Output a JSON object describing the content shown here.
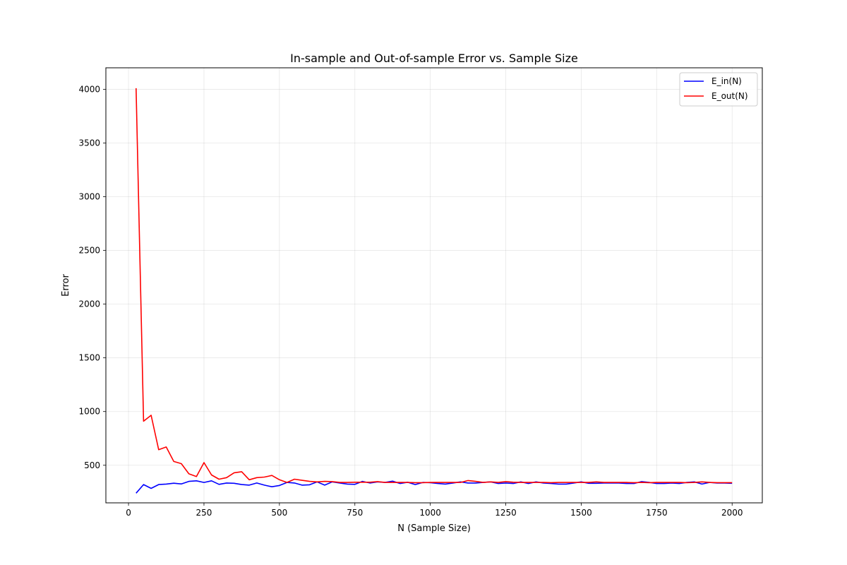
{
  "chart_data": {
    "type": "line",
    "title": "In-sample and Out-of-sample Error vs. Sample Size",
    "xlabel": "N (Sample Size)",
    "ylabel": "Error",
    "xlim": [
      -75,
      2100
    ],
    "ylim": [
      150,
      4200
    ],
    "xticks": [
      0,
      250,
      500,
      750,
      1000,
      1250,
      1500,
      1750,
      2000
    ],
    "yticks": [
      500,
      1000,
      1500,
      2000,
      2500,
      3000,
      3500,
      4000
    ],
    "grid": true,
    "legend_position": "top-right",
    "x": [
      25,
      50,
      75,
      100,
      125,
      150,
      175,
      200,
      225,
      250,
      275,
      300,
      325,
      350,
      375,
      400,
      425,
      450,
      475,
      500,
      525,
      550,
      575,
      600,
      625,
      650,
      675,
      700,
      725,
      750,
      775,
      800,
      825,
      850,
      875,
      900,
      925,
      950,
      975,
      1000,
      1025,
      1050,
      1075,
      1100,
      1125,
      1150,
      1175,
      1200,
      1225,
      1250,
      1275,
      1300,
      1325,
      1350,
      1375,
      1400,
      1425,
      1450,
      1475,
      1500,
      1525,
      1550,
      1575,
      1600,
      1625,
      1650,
      1675,
      1700,
      1725,
      1750,
      1775,
      1800,
      1825,
      1850,
      1875,
      1900,
      1925,
      1950,
      1975,
      2000
    ],
    "series": [
      {
        "name": "E_in(N)",
        "color": "#0000ff",
        "values": [
          240,
          320,
          285,
          320,
          325,
          333,
          326,
          350,
          355,
          340,
          355,
          322,
          335,
          332,
          320,
          315,
          335,
          315,
          300,
          312,
          340,
          335,
          315,
          318,
          345,
          315,
          345,
          335,
          325,
          322,
          350,
          335,
          345,
          340,
          352,
          330,
          342,
          320,
          340,
          338,
          330,
          325,
          335,
          345,
          335,
          335,
          340,
          345,
          330,
          335,
          330,
          345,
          330,
          345,
          335,
          330,
          325,
          325,
          335,
          345,
          332,
          332,
          335,
          335,
          335,
          330,
          330,
          348,
          340,
          330,
          330,
          335,
          330,
          340,
          345,
          325,
          340,
          335,
          335,
          332
        ]
      },
      {
        "name": "E_out(N)",
        "color": "#ff0000",
        "values": [
          4010,
          910,
          965,
          645,
          670,
          535,
          515,
          420,
          395,
          525,
          410,
          370,
          385,
          430,
          440,
          365,
          385,
          390,
          405,
          365,
          340,
          370,
          360,
          350,
          345,
          350,
          348,
          340,
          340,
          342,
          342,
          342,
          348,
          340,
          340,
          340,
          340,
          338,
          338,
          340,
          340,
          340,
          340,
          340,
          358,
          350,
          340,
          345,
          340,
          348,
          342,
          340,
          340,
          340,
          340,
          338,
          340,
          340,
          340,
          340,
          340,
          345,
          340,
          340,
          340,
          340,
          338,
          340,
          338,
          340,
          340,
          340,
          340,
          338,
          340,
          345,
          340,
          338,
          338,
          338
        ]
      }
    ]
  }
}
